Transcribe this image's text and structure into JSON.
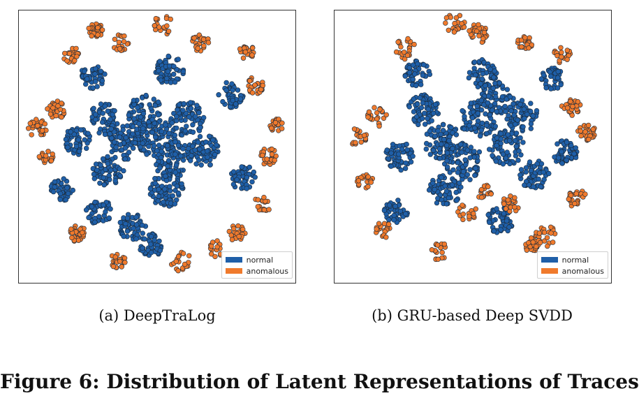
{
  "colors": {
    "normal": "#1f5fa8",
    "anomalous": "#f07a2c",
    "marker_edge": "#1a2a3a"
  },
  "chart_data": [
    {
      "type": "scatter",
      "title": "",
      "caption": "(a)  DeepTraLog",
      "xlabel": "",
      "ylabel": "",
      "grid": false,
      "legend": {
        "placement": "bottom-right",
        "entries": [
          "normal",
          "anomalous"
        ]
      },
      "series": [
        {
          "name": "normal",
          "color": "#1f5fa8",
          "points": [
            [
              0,
              0.2
            ],
            [
              0.5,
              -0.5
            ],
            [
              -1,
              0
            ],
            [
              1,
              0.8
            ],
            [
              -0.4,
              1
            ],
            [
              0.3,
              -1.5
            ],
            [
              1.5,
              -0.2
            ],
            [
              -1.6,
              -0.9
            ],
            [
              -2.6,
              0.1
            ],
            [
              -1.7,
              0.8
            ],
            [
              -0.8,
              -2.7
            ],
            [
              0.4,
              2.4
            ],
            [
              -2.1,
              2.2
            ],
            [
              2.4,
              1.6
            ],
            [
              -1.9,
              -2.2
            ],
            [
              2.8,
              -1.1
            ],
            [
              -0.2,
              -3.3
            ],
            [
              -3.1,
              -1.5
            ]
          ]
        },
        {
          "name": "anomalous",
          "color": "#f07a2c",
          "points": [
            [
              -3.3,
              1.1
            ],
            [
              3.2,
              1.9
            ],
            [
              -1.2,
              3.3
            ],
            [
              1.4,
              3.3
            ],
            [
              3.6,
              -0.4
            ],
            [
              -3.6,
              -0.4
            ],
            [
              -2.6,
              -2.9
            ],
            [
              2.6,
              -2.9
            ],
            [
              0.8,
              -3.8
            ],
            [
              -1.3,
              -3.8
            ],
            [
              2.9,
              3.0
            ],
            [
              -2.8,
              2.9
            ],
            [
              0.2,
              3.9
            ],
            [
              3.9,
              0.6
            ],
            [
              -3.9,
              0.5
            ],
            [
              1.9,
              -3.4
            ],
            [
              -2.0,
              3.7
            ],
            [
              3.4,
              -2.0
            ]
          ]
        }
      ]
    },
    {
      "type": "scatter",
      "title": "",
      "caption": "(b)  GRU-based Deep SVDD",
      "xlabel": "",
      "ylabel": "",
      "grid": false,
      "legend": {
        "placement": "bottom-right",
        "entries": [
          "normal",
          "anomalous"
        ]
      },
      "series": [
        {
          "name": "normal",
          "color": "#1f5fa8",
          "points": [
            [
              0.2,
              0.8
            ],
            [
              -1,
              0.1
            ],
            [
              -0.3,
              -0.6
            ],
            [
              1.1,
              -0.1
            ],
            [
              0.8,
              1.5
            ],
            [
              -1.6,
              1.1
            ],
            [
              1.6,
              0.9
            ],
            [
              -0.9,
              -1.5
            ],
            [
              2.0,
              -1.0
            ],
            [
              -2.4,
              -0.4
            ],
            [
              0.3,
              2.3
            ],
            [
              -1.8,
              2.3
            ],
            [
              2.6,
              2.1
            ],
            [
              0.9,
              -2.5
            ],
            [
              -2.5,
              -2.2
            ],
            [
              3.0,
              -0.3
            ]
          ]
        },
        {
          "name": "anomalous",
          "color": "#f07a2c",
          "points": [
            [
              0.4,
              -1.6
            ],
            [
              1.2,
              -2.0
            ],
            [
              -0.2,
              -2.2
            ],
            [
              -3.1,
              0.9
            ],
            [
              3.2,
              1.2
            ],
            [
              -2.2,
              3.1
            ],
            [
              1.7,
              3.3
            ],
            [
              -3.5,
              -1.2
            ],
            [
              3.4,
              -1.8
            ],
            [
              -1.1,
              -3.5
            ],
            [
              1.9,
              -3.3
            ],
            [
              0.2,
              3.6
            ],
            [
              -3.7,
              0.2
            ],
            [
              3.7,
              0.4
            ],
            [
              2.9,
              2.9
            ],
            [
              -2.9,
              -2.8
            ],
            [
              -0.6,
              3.9
            ],
            [
              2.4,
              -3.0
            ]
          ]
        }
      ]
    }
  ],
  "figure": {
    "title": "Figure 6: Distribution of Latent Representations of Traces"
  }
}
